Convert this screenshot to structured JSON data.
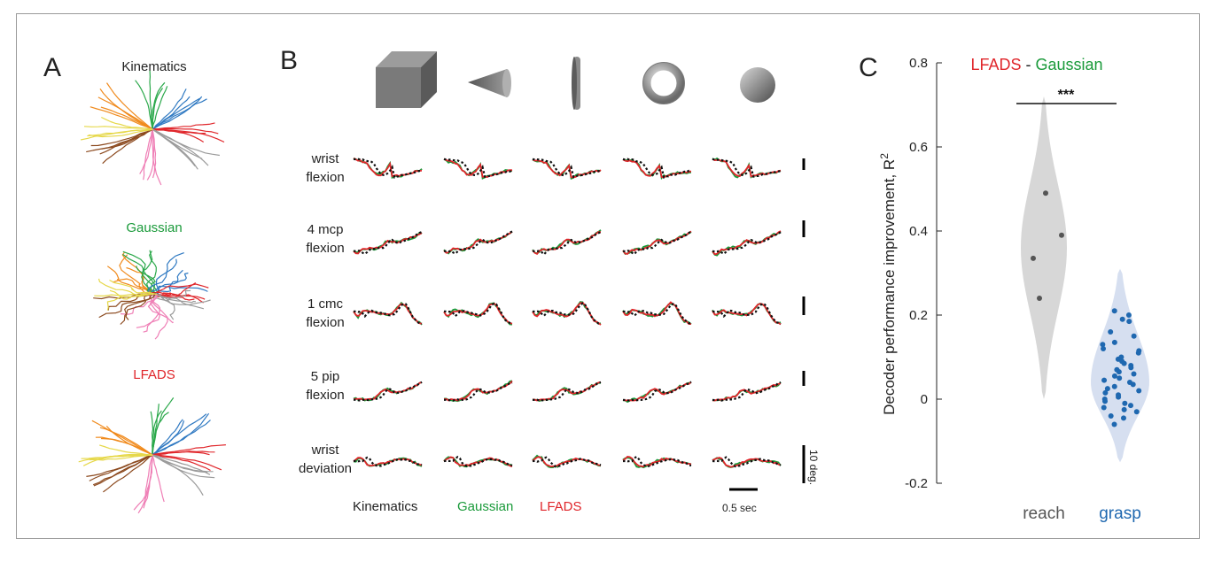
{
  "panel_a": {
    "label": "A",
    "titles": [
      "Kinematics",
      "Gaussian",
      "LFADS"
    ],
    "title_colors": [
      "#222222",
      "#1a9a3a",
      "#e0262b"
    ],
    "trajectory_colors": [
      "#f08a1c",
      "#2aa84a",
      "#2f79c2",
      "#e0262b",
      "#9b9b9b",
      "#ef7fb6",
      "#8c4a1f",
      "#e6d84a"
    ]
  },
  "panel_b": {
    "label": "B",
    "objects": [
      "block-icon",
      "cone-icon",
      "disk-icon",
      "ring-icon",
      "sphere-icon"
    ],
    "rows": [
      {
        "line1": "wrist",
        "line2": "flexion"
      },
      {
        "line1": "4 mcp",
        "line2": "flexion"
      },
      {
        "line1": "1 cmc",
        "line2": "flexion"
      },
      {
        "line1": "5 pip",
        "line2": "flexion"
      },
      {
        "line1": "wrist",
        "line2": "deviation"
      }
    ],
    "legend": [
      {
        "label": "Kinematics",
        "color": "#222222"
      },
      {
        "label": "Gaussian",
        "color": "#1a9a3a"
      },
      {
        "label": "LFADS",
        "color": "#e0262b"
      }
    ],
    "time_scale_label": "0.5 sec",
    "angle_scale_label": "10 deg."
  },
  "panel_c": {
    "label": "C",
    "title_left": "LFADS",
    "title_sep": " - ",
    "title_right": "Gaussian"
  },
  "chart_data": {
    "type": "violin",
    "title": "LFADS - Gaussian",
    "ylabel": "Decoder performance improvement, R",
    "ylabel_superscript": "2",
    "ylim": [
      -0.2,
      0.8
    ],
    "yticks": [
      -0.2,
      0,
      0.2,
      0.4,
      0.6,
      0.8
    ],
    "ytick_labels": [
      "-0.2",
      "0",
      "0.2",
      "0.4",
      "0.6",
      "0.8"
    ],
    "categories": [
      "reach",
      "grasp"
    ],
    "category_colors": [
      "#555555",
      "#1f68b0"
    ],
    "significance": "***",
    "series": [
      {
        "name": "reach",
        "fill": "#d7d7d7",
        "point_color": "#555555",
        "values": [
          0.49,
          0.39,
          0.335,
          0.24
        ]
      },
      {
        "name": "grasp",
        "fill": "#d6dff0",
        "point_color": "#1f68b0",
        "values": [
          0.21,
          0.2,
          0.19,
          0.185,
          0.16,
          0.15,
          0.135,
          0.13,
          0.12,
          0.115,
          0.11,
          0.1,
          0.095,
          0.09,
          0.085,
          0.08,
          0.075,
          0.07,
          0.065,
          0.06,
          0.055,
          0.05,
          0.045,
          0.04,
          0.035,
          0.03,
          0.025,
          0.02,
          0.015,
          0.01,
          0.005,
          0.0,
          -0.005,
          -0.01,
          -0.015,
          -0.02,
          -0.025,
          -0.03,
          -0.04,
          -0.045,
          -0.06
        ]
      }
    ]
  }
}
